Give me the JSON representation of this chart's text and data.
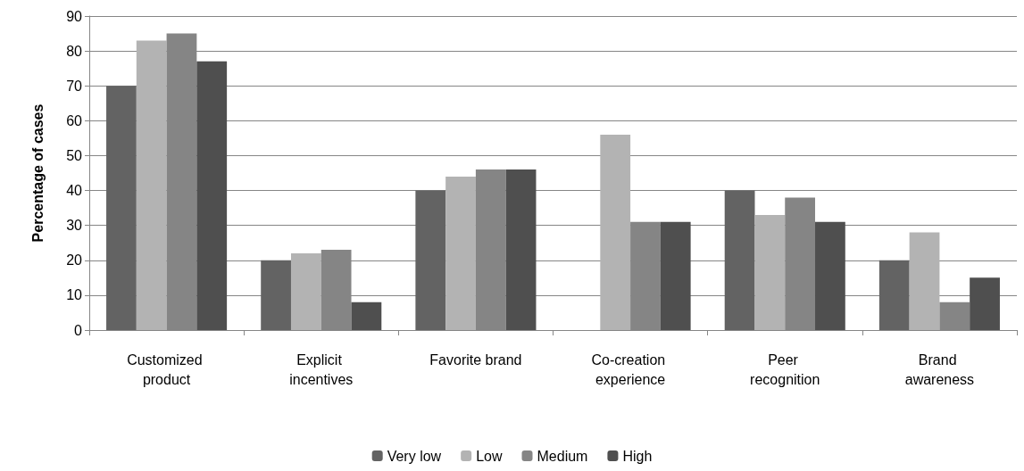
{
  "chart_data": {
    "type": "bar",
    "ylabel": "Percentage of cases",
    "categories": [
      "Customized product",
      "Explicit incentives",
      "Favorite brand",
      "Co-creation experience",
      "Peer recognition",
      "Brand awareness"
    ],
    "series": [
      {
        "name": "Very low",
        "color": "#636363",
        "values": [
          70,
          20,
          40,
          0,
          40,
          20
        ]
      },
      {
        "name": "Low",
        "color": "#b3b3b3",
        "values": [
          83,
          22,
          44,
          56,
          33,
          28
        ]
      },
      {
        "name": "Medium",
        "color": "#858585",
        "values": [
          85,
          23,
          46,
          31,
          38,
          8
        ]
      },
      {
        "name": "High",
        "color": "#4f4f4f",
        "values": [
          77,
          8,
          46,
          31,
          31,
          15
        ]
      }
    ],
    "ylim": [
      0,
      90
    ],
    "yticks": [
      0,
      10,
      20,
      30,
      40,
      50,
      60,
      70,
      80,
      90
    ],
    "grid": "y",
    "legend": "bottom"
  }
}
